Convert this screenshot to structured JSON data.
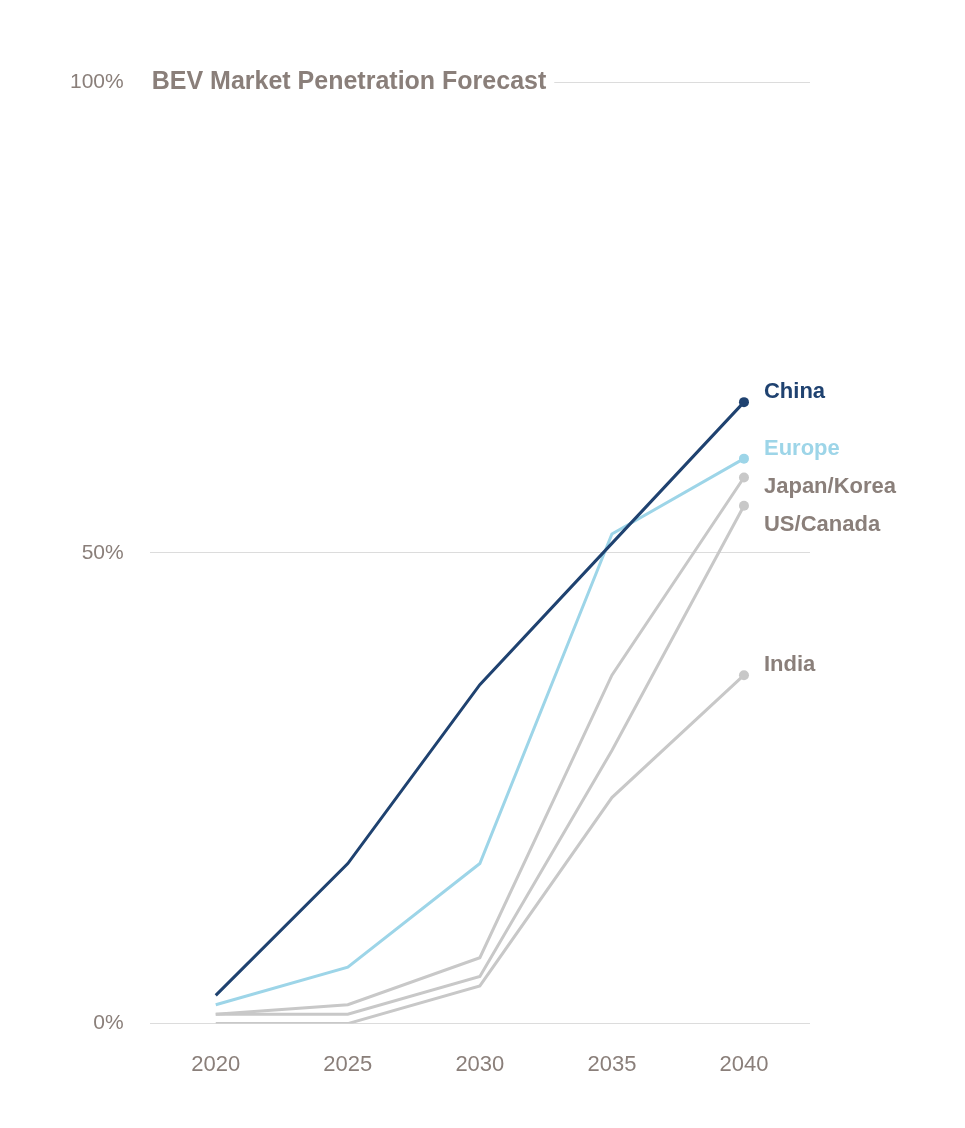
{
  "chart_data": {
    "type": "line",
    "title": "BEV Market Penetration Forecast",
    "categories": [
      "2020",
      "2025",
      "2030",
      "2035",
      "2040"
    ],
    "series": [
      {
        "name": "China",
        "color": "#1f4270",
        "values": [
          3,
          17,
          36,
          51,
          66
        ]
      },
      {
        "name": "Europe",
        "color": "#9dd5e8",
        "values": [
          2,
          6,
          17,
          52,
          60
        ]
      },
      {
        "name": "Japan/Korea",
        "color": "#c8c8c8",
        "values": [
          1,
          2,
          7,
          37,
          58
        ]
      },
      {
        "name": "US/Canada",
        "color": "#c8c8c8",
        "values": [
          1,
          1,
          5,
          29,
          55
        ]
      },
      {
        "name": "India",
        "color": "#c8c8c8",
        "values": [
          0,
          0,
          4,
          24,
          37
        ]
      }
    ],
    "ylim": [
      0,
      100
    ],
    "yticks": [
      {
        "value": 0,
        "label": "0%"
      },
      {
        "value": 50,
        "label": "50%"
      },
      {
        "value": 100,
        "label": "100%"
      }
    ],
    "grid": true
  }
}
